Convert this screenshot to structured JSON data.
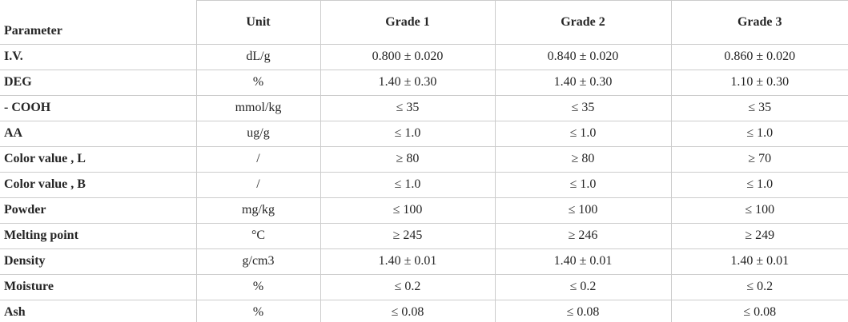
{
  "table": {
    "columns": [
      "Parameter",
      "Unit",
      "Grade 1",
      "Grade 2",
      "Grade 3"
    ],
    "rows": [
      [
        "I.V.",
        "dL/g",
        "0.800 ± 0.020",
        "0.840 ± 0.020",
        "0.860 ± 0.020"
      ],
      [
        "DEG",
        "%",
        "1.40 ± 0.30",
        "1.40 ± 0.30",
        "1.10 ± 0.30"
      ],
      [
        "- COOH",
        "mmol/kg",
        "≤ 35",
        "≤ 35",
        "≤ 35"
      ],
      [
        "AA",
        "ug/g",
        "≤ 1.0",
        "≤ 1.0",
        "≤ 1.0"
      ],
      [
        "Color value , L",
        "/",
        "≥ 80",
        "≥ 80",
        "≥ 70"
      ],
      [
        "Color value , B",
        "/",
        "≤ 1.0",
        "≤ 1.0",
        "≤ 1.0"
      ],
      [
        "Powder",
        "mg/kg",
        "≤ 100",
        "≤ 100",
        "≤ 100"
      ],
      [
        "Melting point",
        "°C",
        "≥ 245",
        "≥ 246",
        "≥ 249"
      ],
      [
        "Density",
        "g/cm3",
        "1.40 ± 0.01",
        "1.40 ± 0.01",
        "1.40 ± 0.01"
      ],
      [
        "Moisture",
        "%",
        "≤ 0.2",
        "≤ 0.2",
        "≤ 0.2"
      ],
      [
        "Ash",
        "%",
        "≤ 0.08",
        "≤ 0.08",
        "≤ 0.08"
      ]
    ],
    "colors": {
      "border": "#cccccc",
      "text": "#262626",
      "background": "#ffffff"
    }
  }
}
